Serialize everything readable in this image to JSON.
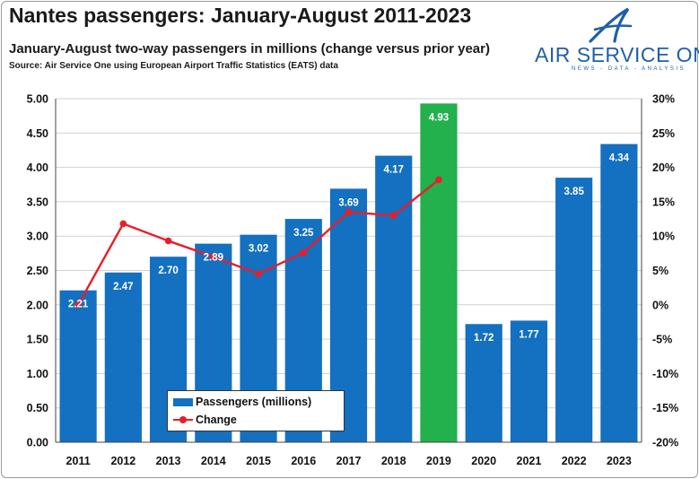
{
  "header": {
    "title": "Nantes passengers: January-August 2011-2023",
    "subtitle": "January-August two-way passengers in millions (change versus prior year)",
    "source": "Source: Air Service One using European Airport Traffic Statistics (EATS) data"
  },
  "logo": {
    "name": "AIR SERVICE ONE",
    "tagline": "NEWS - DATA - ANALYSIS",
    "icon": "stylized-a-icon",
    "color": "#1f5fa8"
  },
  "legend": {
    "passengers_label": "Passengers (millions)",
    "change_label": "Change",
    "position": "bottom-left"
  },
  "colors": {
    "bar": "#1470c0",
    "highlight_bar": "#22b14c",
    "line": "#e81e2a",
    "grid": "#d0d0d0",
    "axis_text": "#111111"
  },
  "chart_data": {
    "type": "bar",
    "categories": [
      "2011",
      "2012",
      "2013",
      "2014",
      "2015",
      "2016",
      "2017",
      "2018",
      "2019",
      "2020",
      "2021",
      "2022",
      "2023"
    ],
    "series": [
      {
        "name": "Passengers (millions)",
        "type": "bar",
        "axis": "left",
        "values": [
          2.21,
          2.47,
          2.7,
          2.89,
          3.02,
          3.25,
          3.69,
          4.17,
          4.93,
          1.72,
          1.77,
          3.85,
          4.34
        ],
        "labels": [
          "2.21",
          "2.47",
          "2.70",
          "2.89",
          "3.02",
          "3.25",
          "3.69",
          "4.17",
          "4.93",
          "1.72",
          "1.77",
          "3.85",
          "4.34"
        ],
        "highlight_category": "2019"
      },
      {
        "name": "Change",
        "type": "line",
        "axis": "right",
        "unit": "%",
        "values": [
          0.0,
          11.8,
          9.3,
          7.0,
          4.5,
          7.6,
          13.5,
          13.0,
          18.2,
          null,
          null,
          null,
          null
        ]
      }
    ],
    "ylim_left": [
      0,
      5
    ],
    "yticks_left": [
      "0.00",
      "0.50",
      "1.00",
      "1.50",
      "2.00",
      "2.50",
      "3.00",
      "3.50",
      "4.00",
      "4.50",
      "5.00"
    ],
    "ylim_right": [
      -20,
      30
    ],
    "yticks_right": [
      "-20%",
      "-15%",
      "-10%",
      "-5%",
      "0%",
      "5%",
      "10%",
      "15%",
      "20%",
      "25%",
      "30%"
    ],
    "grid": true
  }
}
